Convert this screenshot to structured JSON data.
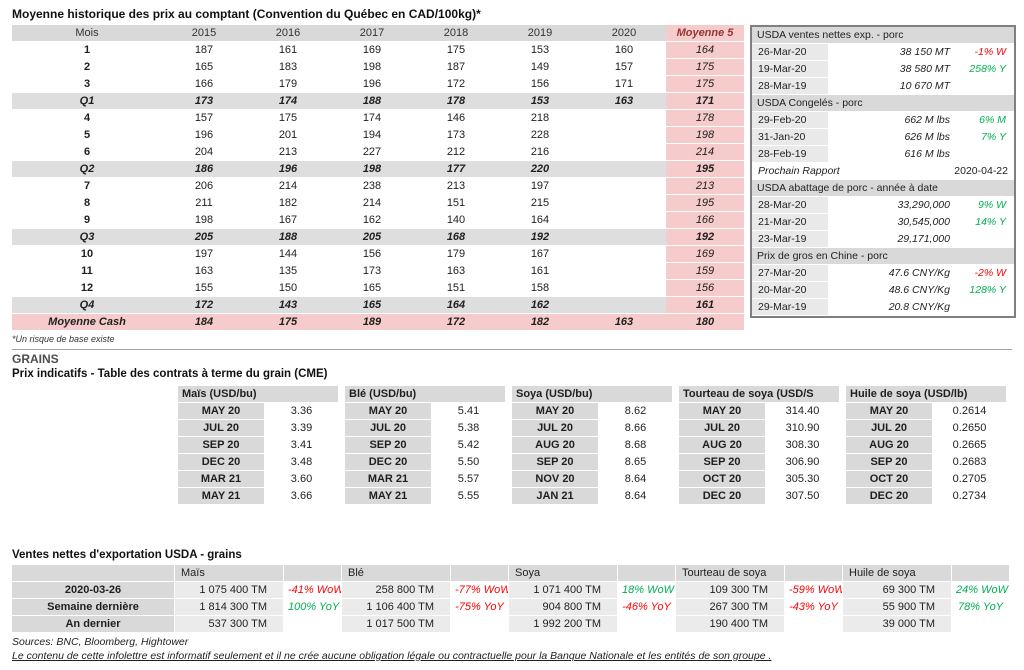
{
  "page": {
    "title": "Moyenne historique des prix au comptant (Convention du Québec en CAD/100kg)*",
    "footnote": "*Un risque de base existe",
    "grains_heading": "GRAINS",
    "cme_heading": "Prix indicatifs - Table des contrats à terme du grain (CME)",
    "export_heading": "Ventes nettes d'exportation USDA - grains",
    "sources": "Sources: BNC, Bloomberg, Hightower",
    "disclaimer": "Le contenu de cette infolettre est informatif seulement et il ne crée aucune obligation légale ou contractuelle pour la Banque Nationale et les entités de son groupe ."
  },
  "spot_table": {
    "headers": [
      "Mois",
      "2015",
      "2016",
      "2017",
      "2018",
      "2019",
      "2020",
      "Moyenne 5"
    ],
    "rows": [
      {
        "label": "1",
        "style": "month",
        "values": [
          "187",
          "161",
          "169",
          "175",
          "153",
          "160"
        ],
        "avg": "164"
      },
      {
        "label": "2",
        "style": "month",
        "values": [
          "165",
          "183",
          "198",
          "187",
          "149",
          "157"
        ],
        "avg": "175"
      },
      {
        "label": "3",
        "style": "month",
        "values": [
          "166",
          "179",
          "196",
          "172",
          "156",
          "171"
        ],
        "avg": "175"
      },
      {
        "label": "Q1",
        "style": "quarter",
        "values": [
          "173",
          "174",
          "188",
          "178",
          "153",
          "163"
        ],
        "avg": "171"
      },
      {
        "label": "4",
        "style": "month",
        "values": [
          "157",
          "175",
          "174",
          "146",
          "218",
          ""
        ],
        "avg": "178"
      },
      {
        "label": "5",
        "style": "month",
        "values": [
          "196",
          "201",
          "194",
          "173",
          "228",
          ""
        ],
        "avg": "198"
      },
      {
        "label": "6",
        "style": "month",
        "values": [
          "204",
          "213",
          "227",
          "212",
          "216",
          ""
        ],
        "avg": "214"
      },
      {
        "label": "Q2",
        "style": "quarter",
        "values": [
          "186",
          "196",
          "198",
          "177",
          "220",
          ""
        ],
        "avg": "195"
      },
      {
        "label": "7",
        "style": "month",
        "values": [
          "206",
          "214",
          "238",
          "213",
          "197",
          ""
        ],
        "avg": "213"
      },
      {
        "label": "8",
        "style": "month",
        "values": [
          "211",
          "182",
          "214",
          "151",
          "215",
          ""
        ],
        "avg": "195"
      },
      {
        "label": "9",
        "style": "month",
        "values": [
          "198",
          "167",
          "162",
          "140",
          "164",
          ""
        ],
        "avg": "166"
      },
      {
        "label": "Q3",
        "style": "quarter",
        "values": [
          "205",
          "188",
          "205",
          "168",
          "192",
          ""
        ],
        "avg": "192"
      },
      {
        "label": "10",
        "style": "month",
        "values": [
          "197",
          "144",
          "156",
          "179",
          "167",
          ""
        ],
        "avg": "169"
      },
      {
        "label": "11",
        "style": "month",
        "values": [
          "163",
          "135",
          "173",
          "163",
          "161",
          ""
        ],
        "avg": "159"
      },
      {
        "label": "12",
        "style": "month",
        "values": [
          "155",
          "150",
          "165",
          "151",
          "158",
          ""
        ],
        "avg": "156"
      },
      {
        "label": "Q4",
        "style": "quarter",
        "values": [
          "172",
          "143",
          "165",
          "164",
          "162",
          ""
        ],
        "avg": "161"
      },
      {
        "label": "Moyenne Cash",
        "style": "cash",
        "values": [
          "184",
          "175",
          "189",
          "172",
          "182",
          "163"
        ],
        "avg": "180"
      }
    ]
  },
  "usda_panel": {
    "sections": [
      {
        "title": "USDA ventes nettes exp. - porc",
        "rows": [
          {
            "date": "26-Mar-20",
            "value": "38 150",
            "unit": "MT",
            "pct": "-1% W",
            "trend": "red"
          },
          {
            "date": "19-Mar-20",
            "value": "38 580",
            "unit": "MT",
            "pct": "258% Y",
            "trend": "green"
          },
          {
            "date": "28-Mar-19",
            "value": "10 670",
            "unit": "MT",
            "pct": "",
            "trend": ""
          }
        ]
      },
      {
        "title": "USDA Congelés - porc",
        "rows": [
          {
            "date": "29-Feb-20",
            "value": "662 M lbs",
            "unit": "",
            "pct": "6% M",
            "trend": "green"
          },
          {
            "date": "31-Jan-20",
            "value": "626 M lbs",
            "unit": "",
            "pct": "7% Y",
            "trend": "green"
          },
          {
            "date": "28-Feb-19",
            "value": "616 M lbs",
            "unit": "",
            "pct": "",
            "trend": ""
          }
        ]
      },
      {
        "type": "report",
        "title": "Prochain Rapport",
        "date": "2020-04-22"
      },
      {
        "title": "USDA abattage de porc - année à date",
        "rows": [
          {
            "date": "28-Mar-20",
            "value": "33,290,000",
            "unit": "",
            "pct": "9% W",
            "trend": "green"
          },
          {
            "date": "21-Mar-20",
            "value": "30,545,000",
            "unit": "",
            "pct": "14% Y",
            "trend": "green"
          },
          {
            "date": "23-Mar-19",
            "value": "29,171,000",
            "unit": "",
            "pct": "",
            "trend": ""
          }
        ]
      },
      {
        "title": "Prix de gros en Chine - porc",
        "rows": [
          {
            "date": "27-Mar-20",
            "value": "47.6 CNY/Kg",
            "unit": "",
            "pct": "-2% W",
            "trend": "red"
          },
          {
            "date": "20-Mar-20",
            "value": "48.6 CNY/Kg",
            "unit": "",
            "pct": "128% Y",
            "trend": "green"
          },
          {
            "date": "29-Mar-19",
            "value": "20.8 CNY/Kg",
            "unit": "",
            "pct": "",
            "trend": ""
          }
        ]
      }
    ]
  },
  "futures": {
    "tables": [
      {
        "title": "Maïs (USD/bu)",
        "rows": [
          [
            "MAY 20",
            "3.36"
          ],
          [
            "JUL 20",
            "3.39"
          ],
          [
            "SEP 20",
            "3.41"
          ],
          [
            "DEC 20",
            "3.48"
          ],
          [
            "MAR 21",
            "3.60"
          ],
          [
            "MAY 21",
            "3.66"
          ]
        ]
      },
      {
        "title": "Blé (USD/bu)",
        "rows": [
          [
            "MAY 20",
            "5.41"
          ],
          [
            "JUL 20",
            "5.38"
          ],
          [
            "SEP 20",
            "5.42"
          ],
          [
            "DEC 20",
            "5.50"
          ],
          [
            "MAR 21",
            "5.57"
          ],
          [
            "MAY 21",
            "5.55"
          ]
        ]
      },
      {
        "title": "Soya (USD/bu)",
        "rows": [
          [
            "MAY 20",
            "8.62"
          ],
          [
            "JUL 20",
            "8.66"
          ],
          [
            "AUG 20",
            "8.68"
          ],
          [
            "SEP 20",
            "8.65"
          ],
          [
            "NOV 20",
            "8.64"
          ],
          [
            "JAN 21",
            "8.64"
          ]
        ]
      },
      {
        "title": "Tourteau de soya (USD/S",
        "rows": [
          [
            "MAY 20",
            "314.40"
          ],
          [
            "JUL 20",
            "310.90"
          ],
          [
            "AUG 20",
            "308.30"
          ],
          [
            "SEP 20",
            "306.90"
          ],
          [
            "OCT 20",
            "305.30"
          ],
          [
            "DEC 20",
            "307.50"
          ]
        ]
      },
      {
        "title": "Huile de soya (USD/lb)",
        "rows": [
          [
            "MAY 20",
            "0.2614"
          ],
          [
            "JUL 20",
            "0.2650"
          ],
          [
            "AUG 20",
            "0.2665"
          ],
          [
            "SEP 20",
            "0.2683"
          ],
          [
            "OCT 20",
            "0.2705"
          ],
          [
            "DEC 20",
            "0.2734"
          ]
        ]
      }
    ]
  },
  "export_sales": {
    "commodities": [
      "Maïs",
      "Blé",
      "Soya",
      "Tourteau de soya",
      "Huile de soya"
    ],
    "rows": [
      {
        "label": "2020-03-26",
        "cells": [
          {
            "value": "1 075 400 TM",
            "pct": "-41% WoW",
            "trend": "red"
          },
          {
            "value": "258 800 TM",
            "pct": "-77% WoW",
            "trend": "red"
          },
          {
            "value": "1 071 400 TM",
            "pct": "18% WoW",
            "trend": "green"
          },
          {
            "value": "109 300 TM",
            "pct": "-59% WoW",
            "trend": "red"
          },
          {
            "value": "69 300 TM",
            "pct": "24% WoW",
            "trend": "green"
          }
        ]
      },
      {
        "label": "Semaine dernière",
        "cells": [
          {
            "value": "1 814 300 TM",
            "pct": "100% YoY",
            "trend": "green"
          },
          {
            "value": "1 106 400 TM",
            "pct": "-75% YoY",
            "trend": "red"
          },
          {
            "value": "904 800 TM",
            "pct": "-46% YoY",
            "trend": "red"
          },
          {
            "value": "267 300 TM",
            "pct": "-43% YoY",
            "trend": "red"
          },
          {
            "value": "55 900 TM",
            "pct": "78% YoY",
            "trend": "green"
          }
        ]
      },
      {
        "label": "An dernier",
        "cells": [
          {
            "value": "537 300 TM",
            "pct": "",
            "trend": ""
          },
          {
            "value": "1 017 500 TM",
            "pct": "",
            "trend": ""
          },
          {
            "value": "1 992 200 TM",
            "pct": "",
            "trend": ""
          },
          {
            "value": "190 400 TM",
            "pct": "",
            "trend": ""
          },
          {
            "value": "39 000 TM",
            "pct": "",
            "trend": ""
          }
        ]
      }
    ]
  },
  "colors": {
    "header_gray": "#d9d9d9",
    "quarter_gray": "#dedede",
    "pink": "#f5cbcb",
    "panel_date_gray": "#e9e9e9",
    "export_value_gray": "#ebebeb",
    "negative_red": "#ff0000",
    "positive_green": "#00b050",
    "moyenne_header_red": "#943634"
  }
}
